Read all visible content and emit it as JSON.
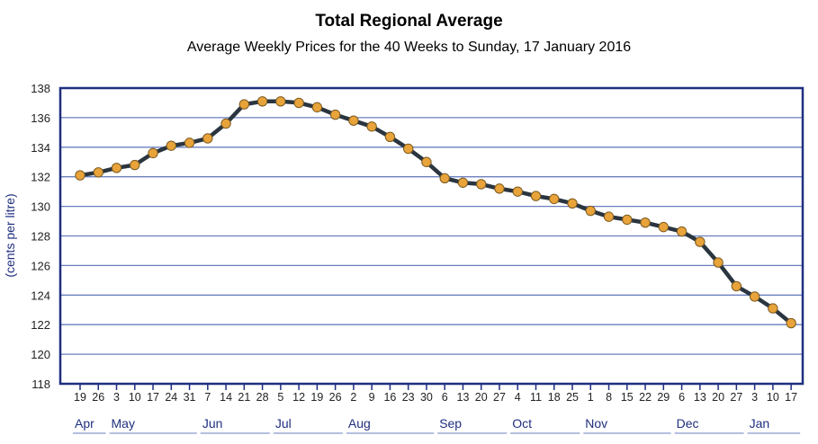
{
  "chart_data": {
    "type": "line",
    "title": "Total Regional Average",
    "subtitle": "Average Weekly Prices for the 40 Weeks to Sunday, 17 January 2016",
    "ylabel": "(cents per litre)",
    "xlabel": "",
    "ylim": [
      118,
      138
    ],
    "yticks": [
      118,
      120,
      122,
      124,
      126,
      128,
      130,
      132,
      134,
      136,
      138
    ],
    "grid": "horizontal",
    "colors": {
      "frame": "#1f2f7f",
      "grid": "#6b7fbf",
      "line": "#2a3540",
      "marker": "#e8a33a",
      "marker_edge": "#7a5a20"
    },
    "categories": [
      "19",
      "26",
      "3",
      "10",
      "17",
      "24",
      "31",
      "7",
      "14",
      "21",
      "28",
      "5",
      "12",
      "19",
      "26",
      "2",
      "9",
      "16",
      "23",
      "30",
      "6",
      "13",
      "20",
      "27",
      "4",
      "11",
      "18",
      "25",
      "1",
      "8",
      "15",
      "22",
      "29",
      "6",
      "13",
      "20",
      "27",
      "3",
      "10",
      "17"
    ],
    "months": [
      {
        "label": "Apr",
        "start": 0,
        "end": 1
      },
      {
        "label": "May",
        "start": 2,
        "end": 6
      },
      {
        "label": "Jun",
        "start": 7,
        "end": 10
      },
      {
        "label": "Jul",
        "start": 11,
        "end": 14
      },
      {
        "label": "Aug",
        "start": 15,
        "end": 19
      },
      {
        "label": "Sep",
        "start": 20,
        "end": 23
      },
      {
        "label": "Oct",
        "start": 24,
        "end": 27
      },
      {
        "label": "Nov",
        "start": 28,
        "end": 32
      },
      {
        "label": "Dec",
        "start": 33,
        "end": 36
      },
      {
        "label": "Jan",
        "start": 37,
        "end": 39
      }
    ],
    "series": [
      {
        "values": [
          132.1,
          132.3,
          132.6,
          132.8,
          133.6,
          134.1,
          134.3,
          134.6,
          135.6,
          136.9,
          137.1,
          137.1,
          137.0,
          136.7,
          136.2,
          135.8,
          135.4,
          134.7,
          133.9,
          133.0,
          131.9,
          131.6,
          131.5,
          131.2,
          131.0,
          130.7,
          130.5,
          130.2,
          129.7,
          129.3,
          129.1,
          128.9,
          128.6,
          128.3,
          127.6,
          126.2,
          124.6,
          123.9,
          123.1,
          122.1
        ]
      }
    ]
  }
}
